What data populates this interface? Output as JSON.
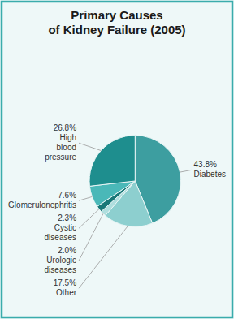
{
  "chart_data": {
    "type": "pie",
    "title": "Primary Causes\nof Kidney Failure (2005)",
    "categories": [
      "Diabetes",
      "Other",
      "Urologic\ndiseases",
      "Cystic\ndiseases",
      "Glomerulonephritis",
      "High\nblood\npressure"
    ],
    "values": [
      43.8,
      17.5,
      2.0,
      2.3,
      7.6,
      26.8
    ],
    "value_labels": [
      "43.8%",
      "17.5%",
      "2.0%",
      "2.3%",
      "7.6%",
      "26.8%"
    ],
    "colors": [
      "#3d9ea0",
      "#8dcfcf",
      "#b0dede",
      "#1a7878",
      "#4ab8b8",
      "#1e8e8e"
    ],
    "data_labels": true
  }
}
